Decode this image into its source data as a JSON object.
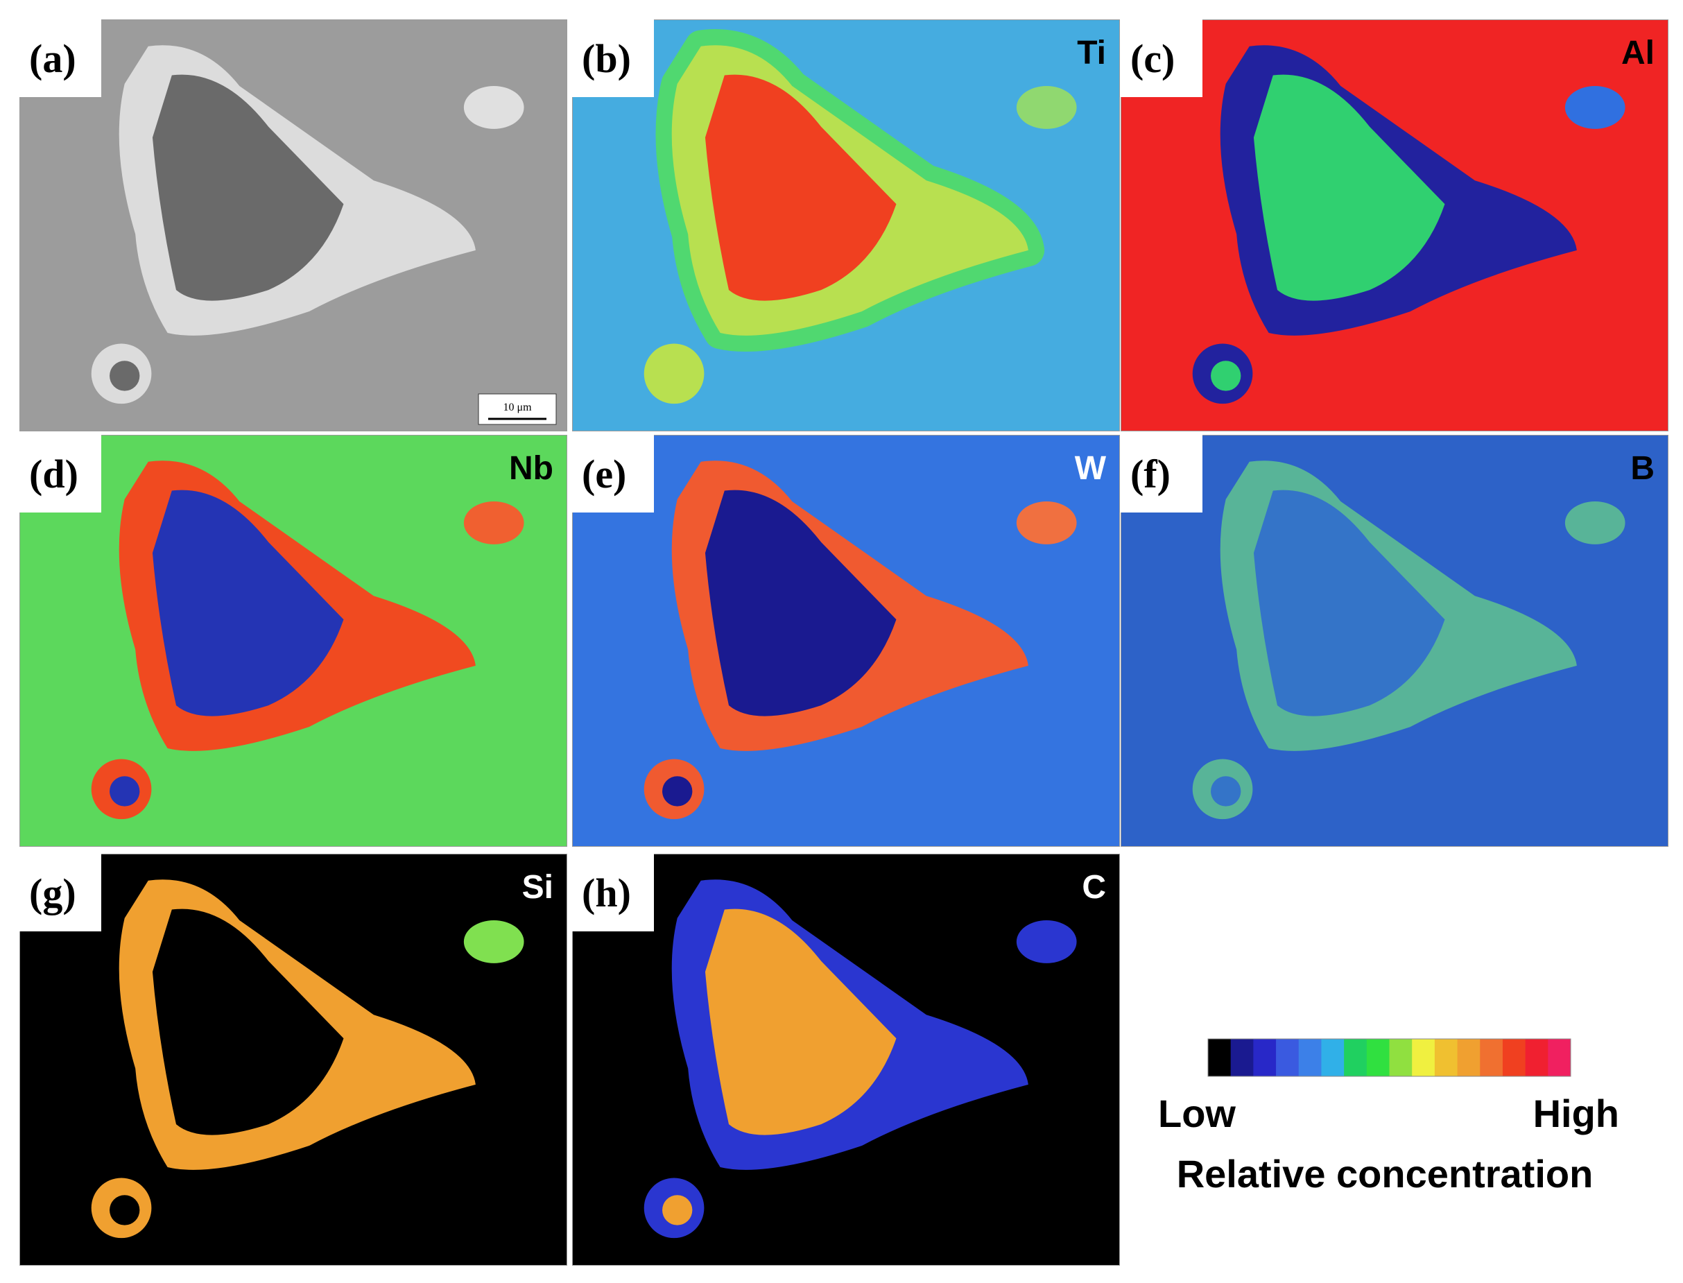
{
  "panels": [
    {
      "label": "(a)",
      "scale_bar": "10 μm"
    },
    {
      "label": "(b)",
      "element": "Ti"
    },
    {
      "label": "(c)",
      "element": "Al"
    },
    {
      "label": "(d)",
      "element": "Nb"
    },
    {
      "label": "(e)",
      "element": "W"
    },
    {
      "label": "(f)",
      "element": "B"
    },
    {
      "label": "(g)",
      "element": "Si"
    },
    {
      "label": "(h)",
      "element": "C"
    }
  ],
  "legend": {
    "low": "Low",
    "high": "High",
    "title": "Relative concentration"
  }
}
